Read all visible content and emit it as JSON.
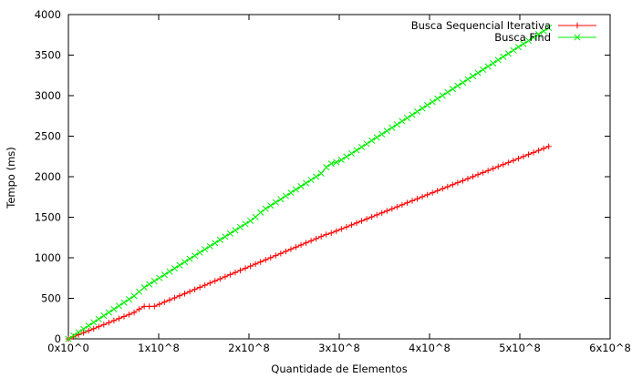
{
  "chart_data": {
    "type": "line",
    "xlabel": "Quantidade de Elementos",
    "ylabel": "Tempo (ms)",
    "xlim": [
      0,
      600000000
    ],
    "ylim": [
      0,
      4000
    ],
    "x_ticks": [
      {
        "value": 0,
        "label": "0x10^0"
      },
      {
        "value": 100000000,
        "label": "1x10^8"
      },
      {
        "value": 200000000,
        "label": "2x10^8"
      },
      {
        "value": 300000000,
        "label": "3x10^8"
      },
      {
        "value": 400000000,
        "label": "4x10^8"
      },
      {
        "value": 500000000,
        "label": "5x10^8"
      },
      {
        "value": 600000000,
        "label": "6x10^8"
      }
    ],
    "y_ticks": [
      {
        "value": 0,
        "label": "0"
      },
      {
        "value": 500,
        "label": "500"
      },
      {
        "value": 1000,
        "label": "1000"
      },
      {
        "value": 1500,
        "label": "1500"
      },
      {
        "value": 2000,
        "label": "2000"
      },
      {
        "value": 2500,
        "label": "2500"
      },
      {
        "value": 3000,
        "label": "3000"
      },
      {
        "value": 3500,
        "label": "3500"
      },
      {
        "value": 4000,
        "label": "4000"
      }
    ],
    "legend_position": "top-right",
    "grid": false,
    "point_count": 96,
    "x_step": 5600000,
    "series": [
      {
        "name": "Busca Sequencial Iterativa",
        "color": "#ff0000",
        "marker": "plus",
        "anchors": [
          [
            0,
            0
          ],
          [
            75000000,
            335
          ],
          [
            82000000,
            400
          ],
          [
            95000000,
            400
          ],
          [
            285000000,
            1285
          ],
          [
            290000000,
            1300
          ],
          [
            538000000,
            2400
          ]
        ]
      },
      {
        "name": "Busca Find",
        "color": "#00ee00",
        "marker": "cross",
        "anchors": [
          [
            0,
            0
          ],
          [
            75000000,
            545
          ],
          [
            82000000,
            620
          ],
          [
            205000000,
            1480
          ],
          [
            215000000,
            1580
          ],
          [
            280000000,
            2040
          ],
          [
            288000000,
            2150
          ],
          [
            300000000,
            2190
          ],
          [
            538000000,
            3880
          ]
        ]
      }
    ]
  }
}
